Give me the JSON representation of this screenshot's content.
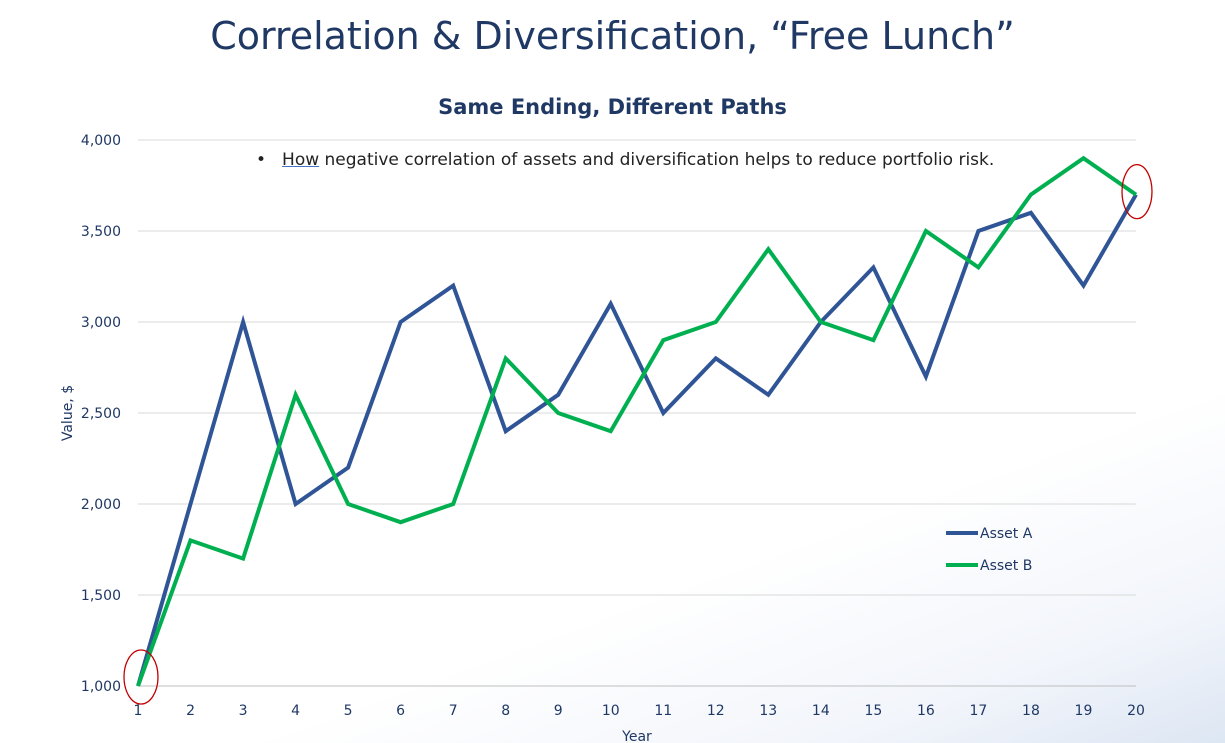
{
  "slide": {
    "title": "Correlation & Diversification, “Free Lunch”",
    "bullet_first_word": "How",
    "bullet_rest": " negative correlation of assets and diversification helps to reduce portfolio risk."
  },
  "chart_data": {
    "type": "line",
    "title": "Same Ending, Different Paths",
    "xlabel": "Year",
    "ylabel": "Value, $",
    "x": [
      1,
      2,
      3,
      4,
      5,
      6,
      7,
      8,
      9,
      10,
      11,
      12,
      13,
      14,
      15,
      16,
      17,
      18,
      19,
      20
    ],
    "ylim": [
      1000,
      4000
    ],
    "yticks": [
      1000,
      1500,
      2000,
      2500,
      3000,
      3500,
      4000
    ],
    "ytick_labels": [
      "1,000",
      "1,500",
      "2,000",
      "2,500",
      "3,000",
      "3,500",
      "4,000"
    ],
    "grid": true,
    "legend_position": "right",
    "series": [
      {
        "name": "Asset A",
        "color": "#2f5597",
        "values": [
          1000,
          2000,
          3000,
          2000,
          2200,
          3000,
          3200,
          2400,
          2600,
          3100,
          2500,
          2800,
          2600,
          3000,
          3300,
          2700,
          3500,
          3600,
          3200,
          3700
        ]
      },
      {
        "name": "Asset B",
        "color": "#00b050",
        "values": [
          1000,
          1800,
          1700,
          2600,
          2000,
          1900,
          2000,
          2800,
          2500,
          2400,
          2900,
          3000,
          3400,
          3000,
          2900,
          3500,
          3300,
          3700,
          3900,
          3700
        ]
      }
    ],
    "annotation_color": "#c00000"
  }
}
